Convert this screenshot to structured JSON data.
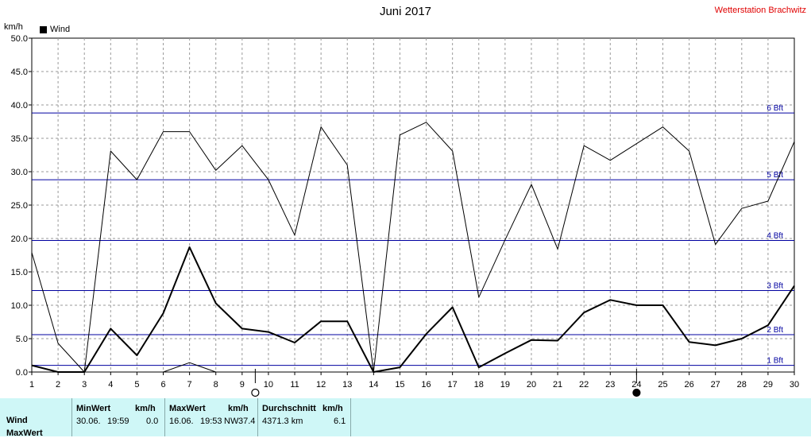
{
  "header": {
    "title": "Juni 2017",
    "station": "Wetterstation Brachwitz",
    "unit": "km/h",
    "legend": "Wind"
  },
  "chart_data": {
    "type": "line",
    "x": [
      1,
      2,
      3,
      4,
      5,
      6,
      7,
      8,
      9,
      10,
      11,
      12,
      13,
      14,
      15,
      16,
      17,
      18,
      19,
      20,
      21,
      22,
      23,
      24,
      25,
      26,
      27,
      28,
      29,
      30
    ],
    "xlim": [
      1,
      30
    ],
    "ylim": [
      0,
      50
    ],
    "y_ticks": [
      "0.0",
      "5.0",
      "10.0",
      "15.0",
      "20.0",
      "25.0",
      "30.0",
      "35.0",
      "40.0",
      "45.0",
      "50.0"
    ],
    "grid": true,
    "series": [
      {
        "name": "Wind",
        "values": [
          1.0,
          0.0,
          0.0,
          6.5,
          2.5,
          8.8,
          18.7,
          10.3,
          6.5,
          6.0,
          4.4,
          7.6,
          7.6,
          0.0,
          0.7,
          5.7,
          9.7,
          0.7,
          2.8,
          4.8,
          4.7,
          8.9,
          10.8,
          10.0,
          10.0,
          4.5,
          4.0,
          5.0,
          7.0,
          12.9
        ]
      },
      {
        "values": [
          17.9,
          4.3,
          0.0,
          33.1,
          28.8,
          36.0,
          36.0,
          30.2,
          33.9,
          28.8,
          20.5,
          36.7,
          31.0,
          0.0,
          35.5,
          37.4,
          33.1,
          11.2,
          19.8,
          28.1,
          18.4,
          33.9,
          31.7,
          34.2,
          36.7,
          33.1,
          19.1,
          24.5,
          25.6,
          34.5
        ]
      },
      {
        "values": [
          null,
          null,
          null,
          null,
          null,
          0.0,
          1.4,
          0.0,
          null,
          null,
          null,
          null,
          null,
          null,
          null,
          null,
          null,
          null,
          null,
          null,
          null,
          null,
          null,
          null,
          null,
          null,
          null,
          null,
          null,
          null
        ]
      }
    ],
    "beaufort_lines": [
      {
        "label": "1 Bft",
        "value": 1.0
      },
      {
        "label": "2 Bft",
        "value": 5.6
      },
      {
        "label": "3 Bft",
        "value": 12.2
      },
      {
        "label": "4 Bft",
        "value": 19.7
      },
      {
        "label": "5 Bft",
        "value": 28.8
      },
      {
        "label": "6 Bft",
        "value": 38.8
      }
    ],
    "moon_phases": [
      {
        "phase": "full-moon",
        "day": 9.5
      },
      {
        "phase": "new-moon",
        "day": 24.0
      }
    ]
  },
  "stats": {
    "row_labels": [
      "Wind",
      "MaxWert"
    ],
    "min": {
      "header": "MinWert",
      "unit": "km/h",
      "date": "30.06.",
      "time": "19:59",
      "value": "0.0"
    },
    "max": {
      "header": "MaxWert",
      "unit": "km/h",
      "date": "16.06.",
      "time": "19:53",
      "dir": "NW",
      "value": "37.4"
    },
    "avg": {
      "header": "Durchschnitt",
      "unit": "km/h",
      "distance": "4371.3 km",
      "value": "6.1"
    }
  }
}
